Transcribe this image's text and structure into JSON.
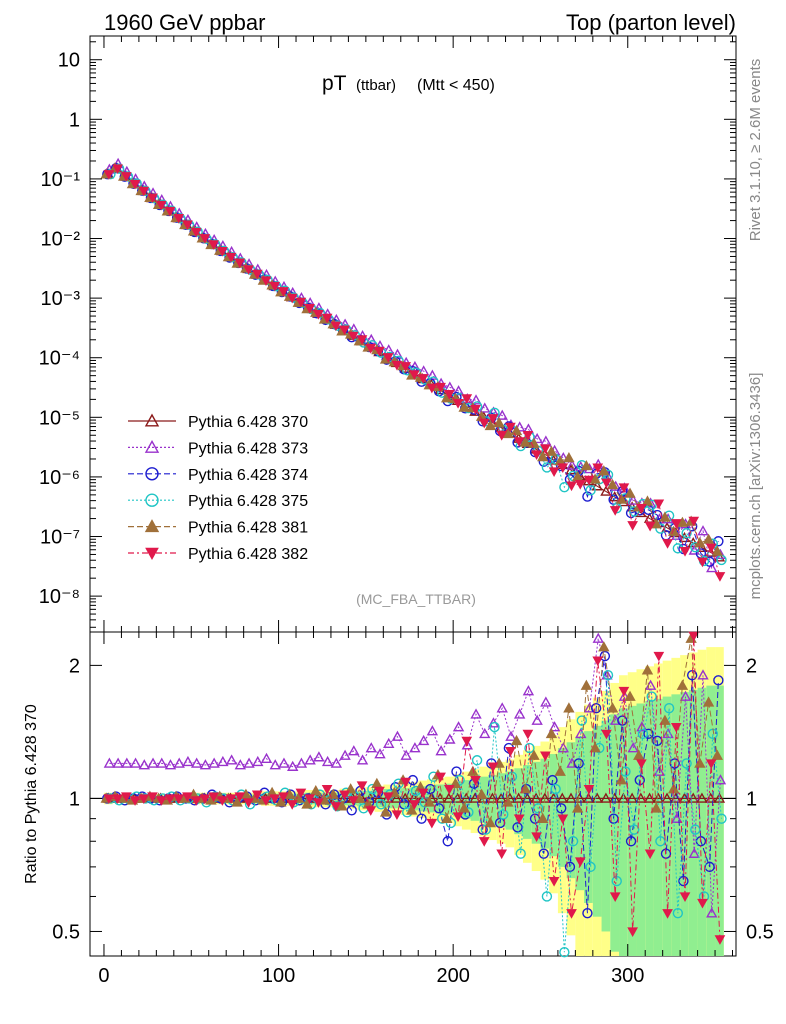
{
  "header": {
    "left_label": "1960 GeV ppbar",
    "right_label": "Top (parton level)"
  },
  "title": {
    "main": "pT",
    "sub": "(ttbar)",
    "cut": "(Mtt < 450)"
  },
  "analysis_id": "(MC_FBA_TTBAR)",
  "side_labels": {
    "rivet": "Rivet 3.1.10, ≥ 2.6M events",
    "mcplots": "mcplots.cern.ch [arXiv:1306.3436]"
  },
  "ratio_ylabel": "Ratio to Pythia 6.428 370",
  "chart_data": [
    {
      "type": "scatter",
      "panel": "main",
      "yscale": "log",
      "xlim": [
        -8,
        362
      ],
      "ylim": [
        2.5e-09,
        25
      ],
      "y_ticks": [
        {
          "v": 10,
          "label": "10"
        },
        {
          "v": 1,
          "label": "1"
        },
        {
          "v": 0.1,
          "label": "10⁻¹"
        },
        {
          "v": 0.01,
          "label": "10⁻²"
        },
        {
          "v": 0.001,
          "label": "10⁻³"
        },
        {
          "v": 0.0001,
          "label": "10⁻⁴"
        },
        {
          "v": 1e-05,
          "label": "10⁻⁵"
        },
        {
          "v": 1e-06,
          "label": "10⁻⁶"
        },
        {
          "v": 1e-07,
          "label": "10⁻⁷"
        },
        {
          "v": 1e-08,
          "label": "10⁻⁸"
        }
      ],
      "bin_centers": [
        2.5,
        7.5,
        12.5,
        17.5,
        22.5,
        27.5,
        32.5,
        37.5,
        42.5,
        47.5,
        52.5,
        57.5,
        62.5,
        67.5,
        72.5,
        77.5,
        82.5,
        87.5,
        92.5,
        97.5,
        102.5,
        107.5,
        112.5,
        117.5,
        122.5,
        127.5,
        132.5,
        137.5,
        142.5,
        147.5,
        152.5,
        157.5,
        162.5,
        167.5,
        172.5,
        177.5,
        182.5,
        187.5,
        192.5,
        197.5,
        202.5,
        207.5,
        212.5,
        217.5,
        222.5,
        227.5,
        232.5,
        237.5,
        242.5,
        247.5,
        252.5,
        257.5,
        262.5,
        267.5,
        272.5,
        277.5,
        282.5,
        287.5,
        292.5,
        297.5,
        302.5,
        307.5,
        312.5,
        317.5,
        322.5,
        327.5,
        332.5,
        337.5,
        342.5,
        347.5,
        352.5
      ],
      "reference_values": [
        0.12,
        0.15,
        0.11,
        0.083,
        0.063,
        0.048,
        0.037,
        0.029,
        0.022,
        0.017,
        0.013,
        0.0101,
        0.0079,
        0.0062,
        0.0049,
        0.0039,
        0.0031,
        0.0025,
        0.002,
        0.0016,
        0.00129,
        0.00104,
        0.00084,
        0.00068,
        0.00055,
        0.000445,
        0.00036,
        0.00029,
        0.000235,
        0.00019,
        0.000154,
        0.000125,
        0.000101,
        8.2e-05,
        6.6e-05,
        5.4e-05,
        4.4e-05,
        3.55e-05,
        2.88e-05,
        2.34e-05,
        1.9e-05,
        1.54e-05,
        1.25e-05,
        1.01e-05,
        8.2e-06,
        6.7e-06,
        5.4e-06,
        4.4e-06,
        3.6e-06,
        2.9e-06,
        2.4e-06,
        1.9e-06,
        1.6e-06,
        1.3e-06,
        1.05e-06,
        8.5e-07,
        7e-07,
        5.7e-07,
        4.6e-07,
        3.8e-07,
        3.1e-07,
        2.5e-07,
        2e-07,
        1.7e-07,
        1.4e-07,
        1.15e-07,
        9.5e-08,
        7.8e-08,
        6.5e-08,
        5.4e-08,
        4.5e-08
      ],
      "series": [
        {
          "name": "Pythia 6.428 370",
          "color": "#8b1a1a",
          "marker": "triangle-up-open",
          "line": "solid"
        },
        {
          "name": "Pythia 6.428 373",
          "color": "#9932cc",
          "marker": "triangle-up-open",
          "line": "dotted"
        },
        {
          "name": "Pythia 6.428 374",
          "color": "#1c1ccf",
          "marker": "circle-open",
          "line": "dashed"
        },
        {
          "name": "Pythia 6.428 375",
          "color": "#20c5c5",
          "marker": "circle-open",
          "line": "dotted"
        },
        {
          "name": "Pythia 6.428 381",
          "color": "#a0703a",
          "marker": "triangle-up-filled",
          "line": "dashed"
        },
        {
          "name": "Pythia 6.428 382",
          "color": "#e0194b",
          "marker": "triangle-down-filled",
          "line": "dashdot"
        }
      ]
    },
    {
      "type": "scatter",
      "panel": "ratio",
      "ylabel": "Ratio to Pythia 6.428 370",
      "yscale": "log",
      "ylim": [
        0.44,
        2.38
      ],
      "y_ticks": [
        {
          "v": 2,
          "label": "2"
        },
        {
          "v": 1,
          "label": "1"
        },
        {
          "v": 0.5,
          "label": "0.5"
        }
      ],
      "x_ticks": [
        {
          "v": 0,
          "label": "0"
        },
        {
          "v": 100,
          "label": "100"
        },
        {
          "v": 200,
          "label": "200"
        },
        {
          "v": 300,
          "label": "300"
        }
      ],
      "reference_band": {
        "colors": [
          "#ffff88",
          "#90ee90"
        ]
      },
      "series_ratios": {
        "Pythia 6.428 370": [
          1,
          1,
          1,
          1,
          1,
          1,
          1,
          1,
          1,
          1,
          1,
          1,
          1,
          1,
          1,
          1,
          1,
          1,
          1,
          1,
          1,
          1,
          1,
          1,
          1,
          1,
          1,
          1,
          1,
          1,
          1,
          1,
          1,
          1,
          1,
          1,
          1,
          1,
          1,
          1,
          1,
          1,
          1,
          1,
          1,
          1,
          1,
          1,
          1,
          1,
          1,
          1,
          1,
          1,
          1,
          1,
          1,
          1,
          1,
          1,
          1,
          1,
          1,
          1,
          1,
          1,
          1,
          1,
          1,
          1,
          1
        ],
        "Pythia 6.428 373": [
          1.2,
          1.2,
          1.2,
          1.2,
          1.19,
          1.2,
          1.2,
          1.19,
          1.2,
          1.21,
          1.2,
          1.19,
          1.2,
          1.21,
          1.22,
          1.19,
          1.2,
          1.21,
          1.23,
          1.19,
          1.2,
          1.18,
          1.2,
          1.22,
          1.24,
          1.21,
          1.2,
          1.25,
          1.28,
          1.22,
          1.3,
          1.26,
          1.33,
          1.38,
          1.25,
          1.3,
          1.35,
          1.42,
          1.28,
          1.36,
          1.45,
          1.32,
          1.55,
          1.4,
          1.48,
          1.6,
          1.38,
          1.55,
          1.75,
          1.5,
          1.65,
          1.45,
          1.3,
          1.2,
          1.4,
          1.6,
          2.3,
          1.9,
          1.5,
          1.7,
          1.3,
          1.45,
          1.8,
          1.15,
          1.4,
          0.9,
          1.7,
          0.75,
          1.9,
          0.55,
          1.1
        ],
        "Pythia 6.428 374": [
          1,
          1.01,
          0.99,
          1,
          1.01,
          1,
          0.99,
          1,
          1.01,
          1,
          0.99,
          1,
          1.02,
          1,
          0.98,
          1,
          1.01,
          0.99,
          1.03,
          1,
          0.98,
          1.02,
          0.99,
          1,
          1.01,
          0.97,
          1.02,
          1,
          0.94,
          1.04,
          0.98,
          1.03,
          0.92,
          1.06,
          0.97,
          1.1,
          0.9,
          1.05,
          0.95,
          0.8,
          1.15,
          0.92,
          1.08,
          0.85,
          1.2,
          0.88,
          1.3,
          0.86,
          1.05,
          0.9,
          0.75,
          1.1,
          0.95,
          0.7,
          1.2,
          0.55,
          1.6,
          2.1,
          0.9,
          1.5,
          0.8,
          1.1,
          1.4,
          1.35,
          0.75,
          1.2,
          0.65,
          1.9,
          0.8,
          0.7,
          1.85
        ],
        "Pythia 6.428 375": [
          1,
          0.99,
          1,
          1.01,
          1,
          0.99,
          1,
          1.01,
          0.99,
          1,
          1,
          0.98,
          1.01,
          1,
          0.99,
          1.02,
          0.97,
          1,
          1.01,
          0.99,
          1.03,
          0.98,
          1,
          0.97,
          1.02,
          0.99,
          0.96,
          1.03,
          1.01,
          0.95,
          1.05,
          0.97,
          1.02,
          1.08,
          0.93,
          1.04,
          0.98,
          1.12,
          0.9,
          0.88,
          1.1,
          0.93,
          1.22,
          0.85,
          1.45,
          0.92,
          1.12,
          0.75,
          1.3,
          0.95,
          0.6,
          1.05,
          0.42,
          0.8,
          1.5,
          0.7,
          1.3,
          1.9,
          0.65,
          1.15,
          0.85,
          1.4,
          1.7,
          0.8,
          1.6,
          0.55,
          1.2,
          0.85,
          0.6,
          1.4,
          0.9
        ],
        "Pythia 6.428 381": [
          1,
          1.01,
          1,
          0.99,
          1,
          1.01,
          1,
          0.99,
          1.01,
          1,
          1.02,
          1,
          0.99,
          1.01,
          1,
          0.98,
          1.02,
          1,
          0.99,
          1.03,
          0.98,
          1.02,
          1,
          0.97,
          1.04,
          0.99,
          1.02,
          0.96,
          1.05,
          1,
          0.97,
          1.08,
          0.93,
          1.03,
          1.1,
          0.94,
          1.06,
          0.98,
          1.13,
          0.9,
          1.08,
          0.95,
          1.15,
          1.02,
          0.88,
          1.2,
          0.98,
          1.35,
          1.05,
          1.25,
          0.9,
          1.4,
          1.15,
          1.6,
          0.95,
          1.8,
          1.3,
          2.2,
          1.6,
          1.1,
          1.7,
          1.25,
          1.95,
          0.95,
          1.5,
          1.05,
          1.8,
          2.3,
          1.2,
          1.65,
          1.25
        ],
        "Pythia 6.428 382": [
          1,
          1,
          1.01,
          0.99,
          1,
          1.01,
          0.99,
          1,
          1,
          1.01,
          0.99,
          1,
          1.01,
          0.99,
          1,
          1.01,
          0.98,
          1.02,
          0.99,
          1,
          1.01,
          0.97,
          1.03,
          1,
          0.98,
          1.05,
          0.96,
          1.02,
          0.99,
          1.07,
          0.94,
          1.04,
          1.01,
          0.92,
          1.09,
          0.97,
          1.03,
          0.88,
          1.12,
          1.05,
          0.91,
          1.35,
          1.1,
          0.8,
          1.18,
          0.75,
          1.28,
          0.9,
          1.4,
          0.82,
          1.25,
          0.65,
          0.9,
          0.55,
          0.72,
          1.05,
          2.05,
          1.4,
          0.6,
          1.75,
          0.5,
          1.2,
          0.75,
          2.1,
          0.55,
          1.45,
          0.6,
          2.35,
          0.58,
          1.2,
          0.48
        ]
      },
      "band_half_widths": [
        0.02,
        0.015,
        0.015,
        0.015,
        0.015,
        0.015,
        0.015,
        0.015,
        0.015,
        0.015,
        0.02,
        0.02,
        0.02,
        0.02,
        0.02,
        0.02,
        0.02,
        0.02,
        0.025,
        0.025,
        0.025,
        0.025,
        0.025,
        0.03,
        0.03,
        0.03,
        0.03,
        0.035,
        0.035,
        0.04,
        0.04,
        0.045,
        0.05,
        0.05,
        0.055,
        0.06,
        0.065,
        0.07,
        0.075,
        0.08,
        0.09,
        0.1,
        0.11,
        0.12,
        0.13,
        0.14,
        0.15,
        0.17,
        0.19,
        0.21,
        0.23,
        0.26,
        0.3,
        0.34,
        0.38,
        0.42,
        0.46,
        0.5,
        0.55,
        0.6,
        0.62,
        0.64,
        0.66,
        0.68,
        0.7,
        0.72,
        0.74,
        0.76,
        0.78,
        0.8,
        0.8
      ]
    }
  ]
}
